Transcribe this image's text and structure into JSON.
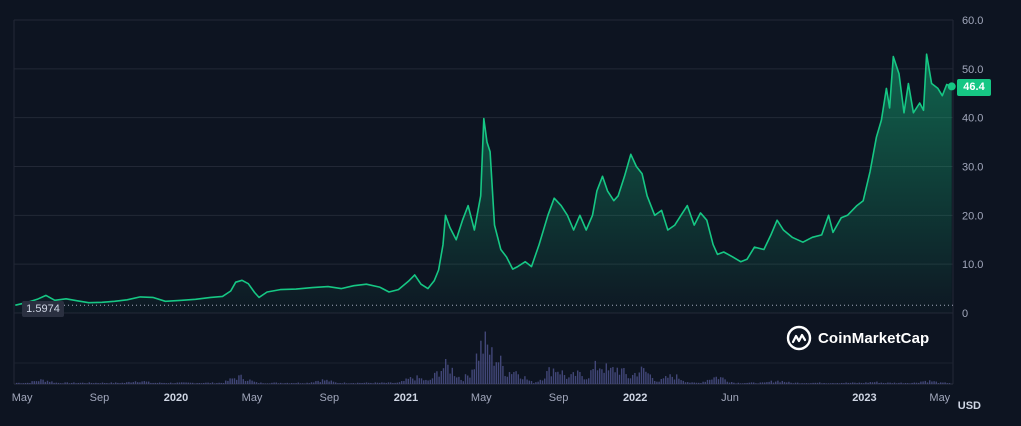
{
  "chart_data": {
    "type": "area",
    "watermark": "CoinMarketCap",
    "unit": "USD",
    "current_price_label": "46.4",
    "baseline_label": "1.5974",
    "baseline_value": 1.5974,
    "ylim": [
      0,
      60
    ],
    "y_ticks": [
      {
        "value": 60,
        "label": "60.0"
      },
      {
        "value": 50,
        "label": "50.0"
      },
      {
        "value": 40,
        "label": "40.0"
      },
      {
        "value": 30,
        "label": "30.0"
      },
      {
        "value": 20,
        "label": "20.0"
      },
      {
        "value": 10,
        "label": "10.0"
      },
      {
        "value": 0,
        "label": "0"
      }
    ],
    "x_range": [
      "2019-04-18",
      "2023-05-22"
    ],
    "x_ticks": [
      {
        "date": "2019-05-01",
        "label": "May",
        "major": false
      },
      {
        "date": "2019-09-01",
        "label": "Sep",
        "major": false
      },
      {
        "date": "2020-01-01",
        "label": "2020",
        "major": true
      },
      {
        "date": "2020-05-01",
        "label": "May",
        "major": false
      },
      {
        "date": "2020-09-01",
        "label": "Sep",
        "major": false
      },
      {
        "date": "2021-01-01",
        "label": "2021",
        "major": true
      },
      {
        "date": "2021-05-01",
        "label": "May",
        "major": false
      },
      {
        "date": "2021-09-01",
        "label": "Sep",
        "major": false
      },
      {
        "date": "2022-01-01",
        "label": "2022",
        "major": true
      },
      {
        "date": "2022-06-01",
        "label": "Jun",
        "major": false
      },
      {
        "date": "2023-01-01",
        "label": "2023",
        "major": true
      },
      {
        "date": "2023-05-01",
        "label": "May",
        "major": false
      }
    ],
    "series": [
      {
        "line_color": "#16c784",
        "points": [
          [
            "2019-04-20",
            1.6
          ],
          [
            "2019-05-10",
            2.2
          ],
          [
            "2019-05-25",
            2.8
          ],
          [
            "2019-06-08",
            3.6
          ],
          [
            "2019-06-22",
            2.6
          ],
          [
            "2019-07-10",
            2.9
          ],
          [
            "2019-07-28",
            2.5
          ],
          [
            "2019-08-15",
            2.1
          ],
          [
            "2019-09-05",
            2.2
          ],
          [
            "2019-09-25",
            2.4
          ],
          [
            "2019-10-15",
            2.7
          ],
          [
            "2019-11-05",
            3.3
          ],
          [
            "2019-11-25",
            3.2
          ],
          [
            "2019-12-15",
            2.4
          ],
          [
            "2020-01-10",
            2.6
          ],
          [
            "2020-02-01",
            2.8
          ],
          [
            "2020-02-25",
            3.2
          ],
          [
            "2020-03-15",
            3.4
          ],
          [
            "2020-03-28",
            4.5
          ],
          [
            "2020-04-05",
            6.3
          ],
          [
            "2020-04-15",
            6.7
          ],
          [
            "2020-04-25",
            6.0
          ],
          [
            "2020-05-05",
            4.2
          ],
          [
            "2020-05-12",
            3.2
          ],
          [
            "2020-05-25",
            4.3
          ],
          [
            "2020-06-15",
            4.8
          ],
          [
            "2020-07-10",
            4.9
          ],
          [
            "2020-08-05",
            5.2
          ],
          [
            "2020-08-30",
            5.4
          ],
          [
            "2020-09-20",
            5.0
          ],
          [
            "2020-10-10",
            5.6
          ],
          [
            "2020-10-30",
            5.9
          ],
          [
            "2020-11-20",
            5.3
          ],
          [
            "2020-12-05",
            4.3
          ],
          [
            "2020-12-20",
            4.8
          ],
          [
            "2021-01-05",
            6.5
          ],
          [
            "2021-01-15",
            7.8
          ],
          [
            "2021-01-25",
            5.9
          ],
          [
            "2021-02-05",
            5.0
          ],
          [
            "2021-02-15",
            6.6
          ],
          [
            "2021-02-22",
            8.8
          ],
          [
            "2021-03-01",
            14.0
          ],
          [
            "2021-03-05",
            20.0
          ],
          [
            "2021-03-12",
            17.5
          ],
          [
            "2021-03-22",
            15.0
          ],
          [
            "2021-04-01",
            19.0
          ],
          [
            "2021-04-10",
            22.0
          ],
          [
            "2021-04-20",
            17.0
          ],
          [
            "2021-04-30",
            24.0
          ],
          [
            "2021-05-05",
            39.8
          ],
          [
            "2021-05-10",
            35.0
          ],
          [
            "2021-05-15",
            33.0
          ],
          [
            "2021-05-22",
            18.0
          ],
          [
            "2021-06-01",
            13.0
          ],
          [
            "2021-06-10",
            11.5
          ],
          [
            "2021-06-20",
            9.0
          ],
          [
            "2021-06-28",
            9.5
          ],
          [
            "2021-07-10",
            10.5
          ],
          [
            "2021-07-20",
            9.5
          ],
          [
            "2021-08-01",
            14.0
          ],
          [
            "2021-08-15",
            20.0
          ],
          [
            "2021-08-25",
            23.5
          ],
          [
            "2021-09-05",
            22.0
          ],
          [
            "2021-09-15",
            20.0
          ],
          [
            "2021-09-25",
            17.0
          ],
          [
            "2021-10-05",
            20.0
          ],
          [
            "2021-10-15",
            17.0
          ],
          [
            "2021-10-25",
            20.0
          ],
          [
            "2021-11-01",
            25.0
          ],
          [
            "2021-11-10",
            28.0
          ],
          [
            "2021-11-18",
            25.0
          ],
          [
            "2021-11-28",
            23.0
          ],
          [
            "2021-12-05",
            24.0
          ],
          [
            "2021-12-15",
            28.0
          ],
          [
            "2021-12-25",
            32.5
          ],
          [
            "2022-01-03",
            30.0
          ],
          [
            "2022-01-12",
            28.5
          ],
          [
            "2022-01-20",
            24.0
          ],
          [
            "2022-02-01",
            20.0
          ],
          [
            "2022-02-12",
            21.0
          ],
          [
            "2022-02-22",
            17.0
          ],
          [
            "2022-03-05",
            18.0
          ],
          [
            "2022-03-15",
            20.0
          ],
          [
            "2022-03-25",
            22.0
          ],
          [
            "2022-04-05",
            18.0
          ],
          [
            "2022-04-15",
            20.5
          ],
          [
            "2022-04-25",
            19.0
          ],
          [
            "2022-05-05",
            14.0
          ],
          [
            "2022-05-12",
            12.0
          ],
          [
            "2022-05-22",
            12.5
          ],
          [
            "2022-06-05",
            11.5
          ],
          [
            "2022-06-18",
            10.5
          ],
          [
            "2022-06-28",
            11.0
          ],
          [
            "2022-07-10",
            13.5
          ],
          [
            "2022-07-25",
            13.0
          ],
          [
            "2022-08-05",
            16.0
          ],
          [
            "2022-08-15",
            19.0
          ],
          [
            "2022-08-25",
            17.0
          ],
          [
            "2022-09-08",
            15.5
          ],
          [
            "2022-09-25",
            14.5
          ],
          [
            "2022-10-10",
            15.5
          ],
          [
            "2022-10-25",
            16.0
          ],
          [
            "2022-11-05",
            20.0
          ],
          [
            "2022-11-12",
            16.5
          ],
          [
            "2022-11-25",
            19.5
          ],
          [
            "2022-12-05",
            20.0
          ],
          [
            "2022-12-20",
            22.0
          ],
          [
            "2022-12-30",
            23.0
          ],
          [
            "2023-01-10",
            29.0
          ],
          [
            "2023-01-20",
            36.0
          ],
          [
            "2023-01-28",
            39.5
          ],
          [
            "2023-02-05",
            46.0
          ],
          [
            "2023-02-10",
            42.0
          ],
          [
            "2023-02-16",
            52.5
          ],
          [
            "2023-02-25",
            49.0
          ],
          [
            "2023-03-05",
            41.0
          ],
          [
            "2023-03-12",
            47.0
          ],
          [
            "2023-03-20",
            41.0
          ],
          [
            "2023-03-30",
            43.0
          ],
          [
            "2023-04-05",
            41.5
          ],
          [
            "2023-04-10",
            53.0
          ],
          [
            "2023-04-18",
            47.0
          ],
          [
            "2023-04-28",
            46.0
          ],
          [
            "2023-05-05",
            44.5
          ],
          [
            "2023-05-12",
            46.8
          ],
          [
            "2023-05-20",
            46.4
          ]
        ]
      }
    ],
    "volume": {
      "color": "#4b4f86",
      "peaks": [
        [
          "2019-06-01",
          0.1
        ],
        [
          "2019-11-01",
          0.08
        ],
        [
          "2020-04-10",
          0.18
        ],
        [
          "2020-08-20",
          0.1
        ],
        [
          "2021-01-15",
          0.16
        ],
        [
          "2021-03-05",
          0.45
        ],
        [
          "2021-04-20",
          0.3
        ],
        [
          "2021-05-05",
          1.0
        ],
        [
          "2021-05-20",
          0.7
        ],
        [
          "2021-06-20",
          0.35
        ],
        [
          "2021-08-25",
          0.4
        ],
        [
          "2021-10-01",
          0.25
        ],
        [
          "2021-11-05",
          0.48
        ],
        [
          "2021-12-01",
          0.4
        ],
        [
          "2022-01-10",
          0.35
        ],
        [
          "2022-03-01",
          0.2
        ],
        [
          "2022-05-10",
          0.18
        ],
        [
          "2022-08-15",
          0.08
        ],
        [
          "2023-01-15",
          0.05
        ],
        [
          "2023-04-10",
          0.08
        ]
      ]
    }
  }
}
